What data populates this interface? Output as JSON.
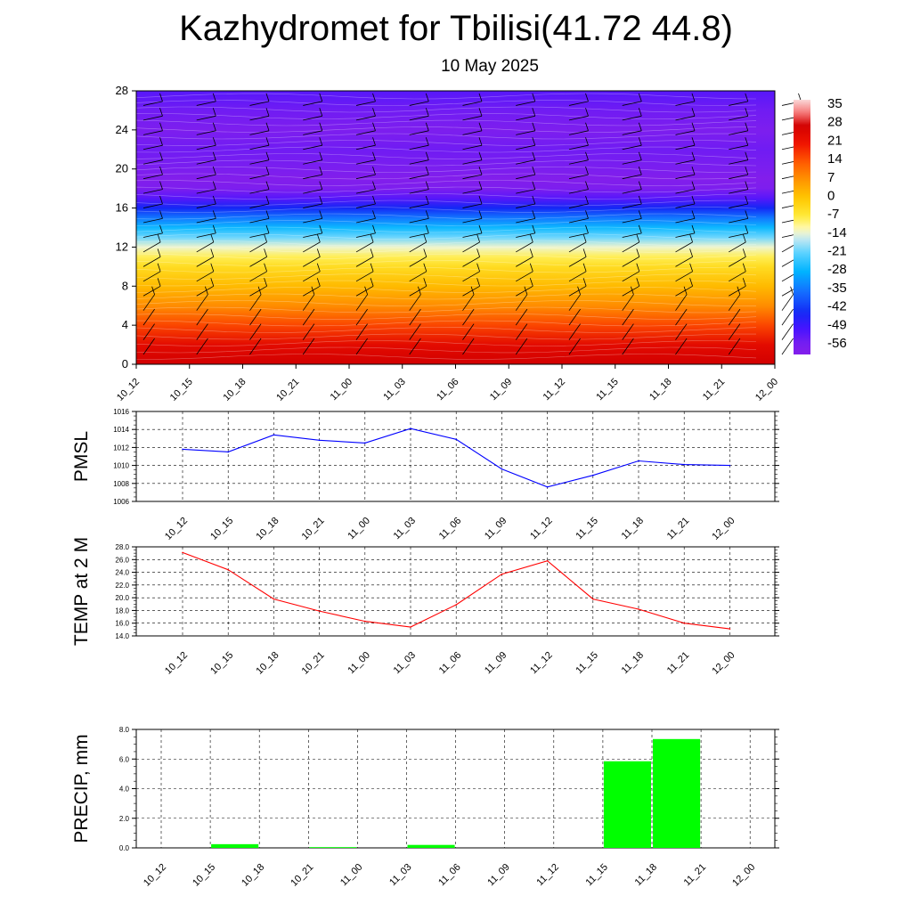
{
  "title": "Kazhydromet for Tbilisi(41.72 44.8)",
  "subtitle": "10 May 2025",
  "colors": {
    "pmsl_line": "#0000ff",
    "temp_line": "#ff0000",
    "precip_bar": "#00ff00",
    "grid": "#000000"
  },
  "chart_data": [
    {
      "type": "heatmap",
      "name": "cross-section",
      "x": [
        "10_12",
        "10_15",
        "10_18",
        "10_21",
        "11_00",
        "11_03",
        "11_06",
        "11_09",
        "11_12",
        "11_15",
        "11_18",
        "11_21",
        "12_00"
      ],
      "y_ticks": [
        0,
        4,
        8,
        12,
        16,
        20,
        24,
        28
      ],
      "ylim": [
        0,
        28
      ],
      "colorbar": {
        "labels": [
          "35",
          "28",
          "21",
          "14",
          "7",
          "0",
          "-7",
          "-14",
          "-21",
          "-28",
          "-35",
          "-42",
          "-49",
          "-56"
        ],
        "range": [
          -60,
          38
        ]
      },
      "profile_levels": [
        0,
        2,
        4,
        6,
        8,
        10,
        11,
        12,
        13,
        14,
        15,
        16,
        17,
        18,
        19,
        20,
        22,
        24,
        26,
        28
      ],
      "profile_values": [
        28,
        24,
        16,
        8,
        2,
        -4,
        -8,
        -13,
        -20,
        -27,
        -35,
        -44,
        -52,
        -58,
        -60,
        -57,
        -55,
        -58,
        -55,
        -52
      ],
      "wind_barbs": true
    },
    {
      "type": "line",
      "name": "pmsl",
      "ylabel": "PMSL",
      "categories": [
        "10_12",
        "10_15",
        "10_18",
        "10_21",
        "11_00",
        "11_03",
        "11_06",
        "11_09",
        "11_12",
        "11_15",
        "11_18",
        "11_21",
        "12_00"
      ],
      "y_ticks": [
        "1006",
        "1008",
        "1010",
        "1012",
        "1014",
        "1016"
      ],
      "ylim": [
        1006,
        1016
      ],
      "values": [
        1011.8,
        1011.5,
        1013.4,
        1012.8,
        1012.5,
        1014.1,
        1012.9,
        1009.6,
        1007.6,
        1008.9,
        1010.5,
        1010.1,
        1010.0
      ],
      "grid": true
    },
    {
      "type": "line",
      "name": "temp",
      "ylabel": "TEMP at 2 M",
      "categories": [
        "10_12",
        "10_15",
        "10_18",
        "10_21",
        "11_00",
        "11_03",
        "11_06",
        "11_09",
        "11_12",
        "11_15",
        "11_18",
        "11_21",
        "12_00"
      ],
      "y_ticks": [
        "14.0",
        "16.0",
        "18.0",
        "20.0",
        "22.0",
        "24.0",
        "26.0",
        "28.0"
      ],
      "ylim": [
        14,
        28
      ],
      "values": [
        27.1,
        24.4,
        19.8,
        17.9,
        16.3,
        15.4,
        18.9,
        23.7,
        25.8,
        19.8,
        18.2,
        16.0,
        15.1
      ],
      "grid": true
    },
    {
      "type": "bar",
      "name": "precip",
      "ylabel": "PRECIP, mm",
      "categories": [
        "10_12",
        "10_15",
        "10_18",
        "10_21",
        "11_00",
        "11_03",
        "11_06",
        "11_09",
        "11_12",
        "11_15",
        "11_18",
        "11_21",
        "12_00"
      ],
      "y_ticks": [
        "0.0",
        "2.0",
        "4.0",
        "6.0",
        "8.0"
      ],
      "ylim": [
        0,
        8
      ],
      "values": [
        0,
        0.25,
        0,
        0.05,
        0,
        0.2,
        0,
        0,
        0,
        5.85,
        7.35,
        0,
        0
      ],
      "grid": true
    }
  ]
}
